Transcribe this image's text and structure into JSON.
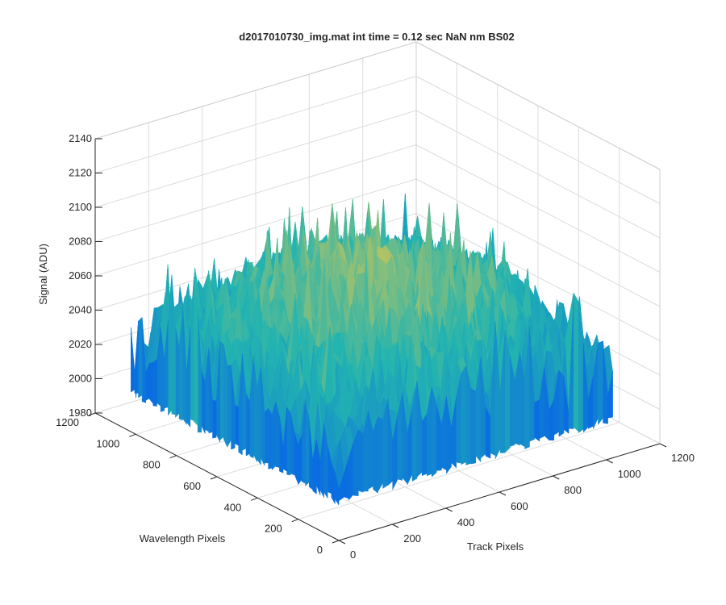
{
  "chart_data": {
    "type": "surface",
    "title": "d2017010730_img.mat int time = 0.12 sec  NaN nm BS02",
    "xlabel": "Track Pixels",
    "ylabel": "Wavelength Pixels",
    "zlabel": "Signal (ADU)",
    "xlim": [
      0,
      1200
    ],
    "ylim": [
      0,
      1200
    ],
    "zlim": [
      1980,
      2140
    ],
    "x_ticks": [
      "0",
      "200",
      "400",
      "600",
      "800",
      "1000",
      "1200"
    ],
    "y_ticks": [
      "0",
      "200",
      "400",
      "600",
      "800",
      "1000",
      "1200"
    ],
    "z_ticks": [
      "1980",
      "2000",
      "2020",
      "2040",
      "2060",
      "2080",
      "2100",
      "2120",
      "2140"
    ],
    "grid": true,
    "colormap": "parula",
    "data_extent": {
      "x": [
        0,
        1024
      ],
      "y": [
        0,
        1024
      ]
    },
    "signal_profile": {
      "corner_min": 2000,
      "center_mean": 2085,
      "edge_mean": 2030,
      "noise_amplitude": 25
    },
    "colors": {
      "low": "#0a6ee0",
      "mid": "#23b4b0",
      "high": "#e6c84a"
    }
  }
}
